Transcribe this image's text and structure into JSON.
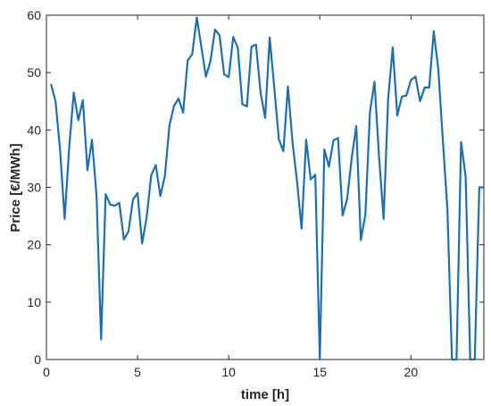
{
  "chart_data": {
    "type": "line",
    "xlabel": "time [h]",
    "ylabel": "Price [€/MWh]",
    "xlim": [
      0,
      24
    ],
    "ylim": [
      0,
      60
    ],
    "xticks": [
      0,
      5,
      10,
      15,
      20
    ],
    "yticks": [
      0,
      10,
      20,
      30,
      40,
      50,
      60
    ],
    "grid": false,
    "line_color": "#1F6FAE",
    "series": [
      {
        "x": [
          0.25,
          0.5,
          0.75,
          1,
          1.25,
          1.5,
          1.75,
          2,
          2.25,
          2.5,
          2.75,
          3,
          3.25,
          3.5,
          3.75,
          4,
          4.25,
          4.5,
          4.75,
          5,
          5.25,
          5.5,
          5.75,
          6,
          6.25,
          6.5,
          6.75,
          7,
          7.25,
          7.5,
          7.75,
          8,
          8.25,
          8.5,
          8.75,
          9,
          9.25,
          9.5,
          9.75,
          10,
          10.25,
          10.5,
          10.75,
          11,
          11.25,
          11.5,
          11.75,
          12,
          12.25,
          12.5,
          12.75,
          13,
          13.25,
          13.5,
          13.75,
          14,
          14.25,
          14.5,
          14.75,
          15,
          15.25,
          15.5,
          15.75,
          16,
          16.25,
          16.5,
          16.75,
          17,
          17.25,
          17.5,
          17.75,
          18,
          18.25,
          18.5,
          18.75,
          19,
          19.25,
          19.5,
          19.75,
          20,
          20.25,
          20.5,
          20.75,
          21,
          21.25,
          21.5,
          21.75,
          22,
          22.25,
          22.5,
          22.75,
          23,
          23.25,
          23.5,
          23.75,
          24
        ],
        "values": [
          48,
          45,
          36.5,
          24.5,
          37,
          46.5,
          41.7,
          45.2,
          33,
          38.3,
          28.5,
          3.5,
          28.8,
          27,
          26.8,
          27.3,
          20.9,
          22.3,
          27.9,
          29,
          20.2,
          24.8,
          32.1,
          33.9,
          28.5,
          32,
          40.8,
          44.2,
          45.5,
          43,
          52.1,
          53.2,
          59.6,
          54.5,
          49.3,
          52,
          57.5,
          56.5,
          49.7,
          49.2,
          56.2,
          54.3,
          44.5,
          44.1,
          54.5,
          54.9,
          46.5,
          42.1,
          56.1,
          47.4,
          38.4,
          36.3,
          47.6,
          37.9,
          31,
          22.8,
          38.3,
          31.4,
          32.2,
          0,
          36.6,
          33.6,
          38.2,
          38.6,
          25.1,
          28,
          35.1,
          40.7,
          20.8,
          25.3,
          43.1,
          48.4,
          35.3,
          24.5,
          45.5,
          54.4,
          42.5,
          45.8,
          46,
          48.7,
          49.3,
          45,
          47.4,
          47.4,
          57.2,
          50.6,
          38.2,
          26.2,
          0,
          0,
          37.9,
          31.9,
          0,
          0,
          30,
          30
        ]
      }
    ]
  }
}
